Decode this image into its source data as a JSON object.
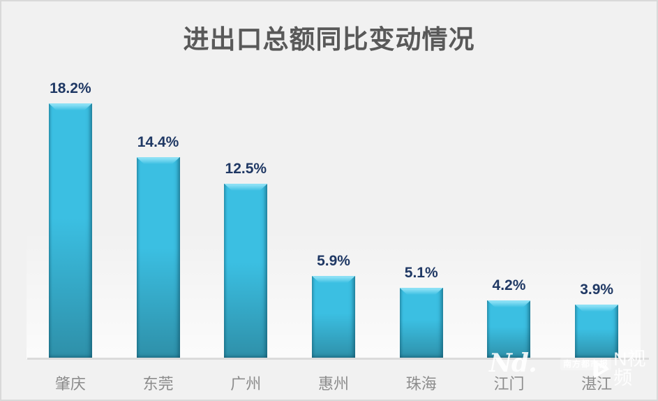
{
  "chart_data": {
    "type": "bar",
    "title": "进出口总额同比变动情况",
    "categories": [
      "肇庆",
      "东莞",
      "广州",
      "惠州",
      "珠海",
      "江门",
      "湛江"
    ],
    "values": [
      18.2,
      14.4,
      12.5,
      5.9,
      5.1,
      4.2,
      3.9
    ],
    "value_labels": [
      "18.2%",
      "14.4%",
      "12.5%",
      "5.9%",
      "5.1%",
      "4.2%",
      "3.9%"
    ],
    "unit": "%",
    "ylim": [
      0,
      20.5
    ],
    "grid": false,
    "legend": "none",
    "xlabel": "",
    "ylabel": ""
  },
  "watermark": {
    "logo_text": "Nd.",
    "badge_label": "南方都市报",
    "video_label": "N视频"
  },
  "colors": {
    "background": "#F1F1F1",
    "card_border": "#D9D9D9",
    "title": "#595959",
    "bar_main": "#3BBFE2",
    "bar_highlight": "#8AE0F5",
    "bar_shadow": "#2E8FA8",
    "value_label": "#1F3864",
    "axis_line": "#DBDBDB",
    "category_label": "#8C8C8C",
    "watermark": "#FFFFFF"
  }
}
